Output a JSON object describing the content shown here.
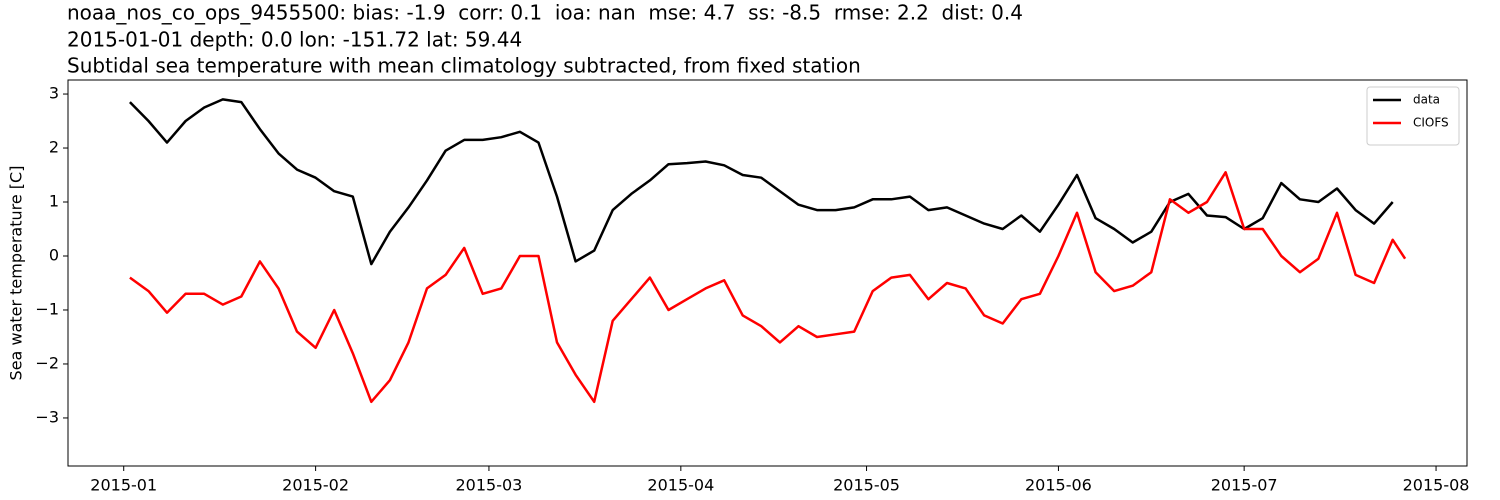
{
  "chart_data": {
    "type": "line",
    "title": [
      "noaa_nos_co_ops_9455500: bias: -1.9  corr: 0.1  ioa: nan  mse: 4.7  ss: -8.5  rmse: 2.2  dist: 0.4",
      "2015-01-01 depth: 0.0 lon: -151.72 lat: 59.44",
      "Subtidal sea temperature with mean climatology subtracted, from fixed station"
    ],
    "ylabel": "Sea water temperature [C]",
    "x": [
      "2015-01-02",
      "2015-01-05",
      "2015-01-08",
      "2015-01-11",
      "2015-01-14",
      "2015-01-17",
      "2015-01-20",
      "2015-01-23",
      "2015-01-26",
      "2015-01-29",
      "2015-02-01",
      "2015-02-04",
      "2015-02-07",
      "2015-02-10",
      "2015-02-13",
      "2015-02-16",
      "2015-02-19",
      "2015-02-22",
      "2015-02-25",
      "2015-02-28",
      "2015-03-03",
      "2015-03-06",
      "2015-03-09",
      "2015-03-12",
      "2015-03-15",
      "2015-03-18",
      "2015-03-21",
      "2015-03-24",
      "2015-03-27",
      "2015-03-30",
      "2015-04-02",
      "2015-04-05",
      "2015-04-08",
      "2015-04-11",
      "2015-04-14",
      "2015-04-17",
      "2015-04-20",
      "2015-04-23",
      "2015-04-26",
      "2015-04-29",
      "2015-05-02",
      "2015-05-05",
      "2015-05-08",
      "2015-05-11",
      "2015-05-14",
      "2015-05-17",
      "2015-05-20",
      "2015-05-23",
      "2015-05-26",
      "2015-05-29",
      "2015-06-01",
      "2015-06-04",
      "2015-06-07",
      "2015-06-10",
      "2015-06-13",
      "2015-06-16",
      "2015-06-19",
      "2015-06-22",
      "2015-06-25",
      "2015-06-28",
      "2015-07-01",
      "2015-07-04",
      "2015-07-07",
      "2015-07-10",
      "2015-07-13",
      "2015-07-16",
      "2015-07-19",
      "2015-07-22",
      "2015-07-25",
      "2015-07-27"
    ],
    "series": [
      {
        "name": "data",
        "color": "#000000",
        "values": [
          2.85,
          2.5,
          2.1,
          2.5,
          2.75,
          2.9,
          2.85,
          2.35,
          1.9,
          1.6,
          1.45,
          1.2,
          1.1,
          -0.15,
          0.45,
          0.9,
          1.4,
          1.95,
          2.15,
          2.15,
          2.2,
          2.3,
          2.1,
          1.1,
          -0.1,
          0.1,
          0.85,
          1.15,
          1.4,
          1.7,
          1.72,
          1.75,
          1.68,
          1.5,
          1.45,
          1.2,
          0.95,
          0.85,
          0.85,
          0.9,
          1.05,
          1.05,
          1.1,
          0.85,
          0.9,
          0.75,
          0.6,
          0.5,
          0.75,
          0.45,
          0.95,
          1.5,
          0.7,
          0.5,
          0.25,
          0.45,
          1.0,
          1.15,
          0.75,
          0.72,
          0.5,
          0.7,
          1.35,
          1.05,
          1.0,
          1.25,
          0.85,
          0.6,
          1.0,
          null
        ]
      },
      {
        "name": "CIOFS",
        "color": "#ff0000",
        "values": [
          -0.4,
          -0.65,
          -1.05,
          -0.7,
          -0.7,
          -0.9,
          -0.75,
          -0.1,
          -0.6,
          -1.4,
          -1.7,
          -1.0,
          -1.8,
          -2.7,
          -2.3,
          -1.6,
          -0.6,
          -0.35,
          0.15,
          -0.7,
          -0.6,
          0.0,
          0.0,
          -1.6,
          -2.2,
          -2.7,
          -1.2,
          -0.8,
          -0.4,
          -1.0,
          -0.8,
          -0.6,
          -0.45,
          -1.1,
          -1.3,
          -1.6,
          -1.3,
          -1.5,
          -1.45,
          -1.4,
          -0.65,
          -0.4,
          -0.35,
          -0.8,
          -0.5,
          -0.6,
          -1.1,
          -1.25,
          -0.8,
          -0.7,
          0.0,
          0.8,
          -0.3,
          -0.65,
          -0.55,
          -0.3,
          1.05,
          0.8,
          1.0,
          1.55,
          0.5,
          0.5,
          0.0,
          -0.3,
          -0.05,
          0.8,
          -0.35,
          -0.5,
          0.3,
          -0.05
        ]
      }
    ],
    "xlim": [
      "2014-12-23",
      "2015-08-06"
    ],
    "xticks": [
      {
        "value": "2015-01-01",
        "label": "2015-01"
      },
      {
        "value": "2015-02-01",
        "label": "2015-02"
      },
      {
        "value": "2015-03-01",
        "label": "2015-03"
      },
      {
        "value": "2015-04-01",
        "label": "2015-04"
      },
      {
        "value": "2015-05-01",
        "label": "2015-05"
      },
      {
        "value": "2015-06-01",
        "label": "2015-06"
      },
      {
        "value": "2015-07-01",
        "label": "2015-07"
      },
      {
        "value": "2015-08-01",
        "label": "2015-08"
      }
    ],
    "ylim": [
      -3.89,
      3.26
    ],
    "yticks": [
      {
        "value": -3,
        "label": "−3"
      },
      {
        "value": -2,
        "label": "−2"
      },
      {
        "value": -1,
        "label": "−1"
      },
      0,
      1,
      2,
      3
    ],
    "grid": false,
    "legend": "upper right"
  }
}
